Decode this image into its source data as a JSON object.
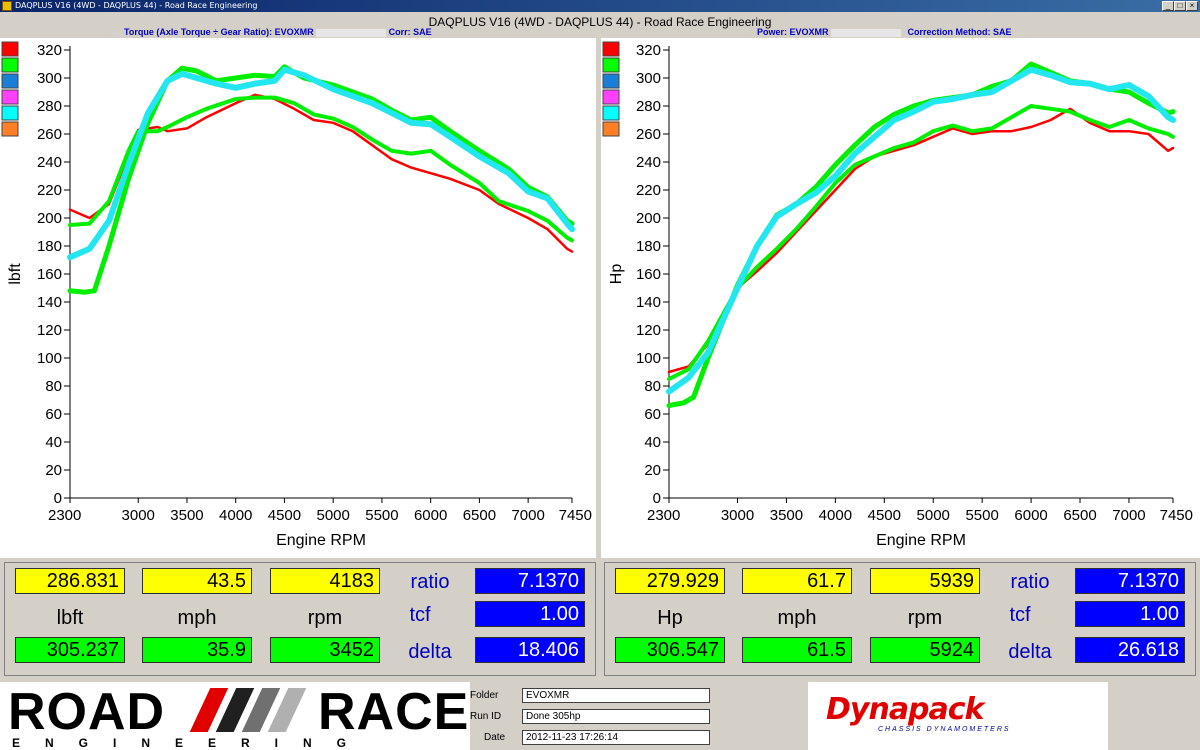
{
  "window": {
    "title": "DAQPLUS V16 (4WD - DAQPLUS 44) - Road Race Engineering",
    "main_title": "DAQPLUS V16 (4WD - DAQPLUS 44) - Road Race Engineering"
  },
  "left_panel": {
    "subtitle_left": "Torque (Axle Torque ÷ Gear Ratio): EVOXMR",
    "subtitle_right": "Corr: SAE",
    "readout": {
      "row1": {
        "value": "286.831",
        "speed": "43.5",
        "rpm": "4183"
      },
      "units": {
        "value": "lbft",
        "speed": "mph",
        "rpm": "rpm"
      },
      "row2": {
        "value": "305.237",
        "speed": "35.9",
        "rpm": "3452"
      },
      "ratio_label": "ratio",
      "ratio": "7.1370",
      "tcf_label": "tcf",
      "tcf": "1.00",
      "delta_label": "delta",
      "delta": "18.406"
    }
  },
  "right_panel": {
    "subtitle_left": "Power: EVOXMR",
    "subtitle_right": "Correction Method: SAE",
    "readout": {
      "row1": {
        "value": "279.929",
        "speed": "61.7",
        "rpm": "5939"
      },
      "units": {
        "value": "Hp",
        "speed": "mph",
        "rpm": "rpm"
      },
      "row2": {
        "value": "306.547",
        "speed": "61.5",
        "rpm": "5924"
      },
      "ratio_label": "ratio",
      "ratio": "7.1370",
      "tcf_label": "tcf",
      "tcf": "1.00",
      "delta_label": "delta",
      "delta": "26.618"
    }
  },
  "legend_colors": [
    "#ff0000",
    "#00ff00",
    "#1a7fd6",
    "#ff40ff",
    "#00ffff",
    "#ff7f27"
  ],
  "chart_data": [
    {
      "type": "line",
      "xlabel": "Engine RPM",
      "ylabel": "lbft",
      "xticks": [
        2300,
        3000,
        3500,
        4000,
        4500,
        5000,
        5500,
        6000,
        6500,
        7000,
        7450
      ],
      "xtick_labels": [
        "2300",
        "3000",
        "3500",
        "4000",
        "4500",
        "5000",
        "5500",
        "6000",
        "6500",
        "7000",
        "7450"
      ],
      "xlim": [
        2300,
        7450
      ],
      "ylim": [
        0,
        320
      ],
      "ytick_labels": [
        "0",
        "20",
        "40",
        "60",
        "80",
        "100",
        "120",
        "140",
        "160",
        "180",
        "200",
        "220",
        "240",
        "260",
        "280",
        "300",
        "320"
      ],
      "series": [
        {
          "color": "#ff0000",
          "width": 2.5,
          "x": [
            2300,
            2500,
            2700,
            2900,
            3000,
            3200,
            3300,
            3500,
            3700,
            4000,
            4200,
            4400,
            4600,
            4800,
            5000,
            5200,
            5400,
            5600,
            5800,
            6000,
            6200,
            6500,
            6700,
            7000,
            7200,
            7400,
            7450
          ],
          "y": [
            206,
            200,
            210,
            245,
            263,
            265,
            262,
            264,
            272,
            282,
            288,
            285,
            278,
            270,
            268,
            262,
            252,
            242,
            236,
            232,
            228,
            220,
            210,
            200,
            192,
            178,
            176
          ]
        },
        {
          "color": "#00ee00",
          "width": 4,
          "x": [
            2300,
            2500,
            2700,
            2900,
            3000,
            3200,
            3300,
            3500,
            3700,
            4000,
            4200,
            4400,
            4600,
            4800,
            5000,
            5200,
            5400,
            5600,
            5800,
            6000,
            6200,
            6500,
            6700,
            7000,
            7200,
            7400,
            7450
          ],
          "y": [
            195,
            196,
            212,
            248,
            262,
            262,
            265,
            272,
            278,
            285,
            286,
            286,
            282,
            274,
            271,
            265,
            256,
            248,
            246,
            248,
            238,
            225,
            212,
            205,
            198,
            186,
            184
          ]
        },
        {
          "color": "#00ee00",
          "width": 5,
          "x": [
            2300,
            2450,
            2550,
            2700,
            2900,
            3100,
            3300,
            3450,
            3600,
            3800,
            4000,
            4200,
            4400,
            4500,
            4700,
            5000,
            5200,
            5400,
            5600,
            5800,
            6000,
            6200,
            6500,
            6800,
            7000,
            7200,
            7400,
            7450
          ],
          "y": [
            148,
            147,
            148,
            180,
            228,
            268,
            298,
            307,
            305,
            298,
            300,
            302,
            301,
            308,
            300,
            295,
            290,
            285,
            277,
            270,
            272,
            262,
            248,
            235,
            222,
            215,
            198,
            196
          ]
        },
        {
          "color": "#22e6f0",
          "width": 6,
          "x": [
            2300,
            2500,
            2700,
            2900,
            3100,
            3300,
            3450,
            3600,
            3800,
            4000,
            4200,
            4400,
            4500,
            4700,
            5000,
            5200,
            5400,
            5600,
            5800,
            6000,
            6200,
            6500,
            6800,
            7000,
            7200,
            7400,
            7450
          ],
          "y": [
            172,
            178,
            198,
            238,
            275,
            298,
            303,
            300,
            296,
            293,
            296,
            298,
            306,
            302,
            292,
            287,
            282,
            275,
            268,
            267,
            258,
            244,
            232,
            219,
            214,
            196,
            192
          ]
        }
      ]
    },
    {
      "type": "line",
      "xlabel": "Engine RPM",
      "ylabel": "Hp",
      "xticks": [
        2300,
        3000,
        3500,
        4000,
        4500,
        5000,
        5500,
        6000,
        6500,
        7000,
        7450
      ],
      "xtick_labels": [
        "2300",
        "3000",
        "3500",
        "4000",
        "4500",
        "5000",
        "5500",
        "6000",
        "6500",
        "7000",
        "7450"
      ],
      "xlim": [
        2300,
        7450
      ],
      "ylim": [
        0,
        320
      ],
      "ytick_labels": [
        "0",
        "20",
        "40",
        "60",
        "80",
        "100",
        "120",
        "140",
        "160",
        "180",
        "200",
        "220",
        "240",
        "260",
        "280",
        "300",
        "320"
      ],
      "series": [
        {
          "color": "#ff0000",
          "width": 2.5,
          "x": [
            2300,
            2500,
            2700,
            3000,
            3200,
            3400,
            3600,
            3800,
            4000,
            4200,
            4400,
            4600,
            4800,
            5000,
            5200,
            5400,
            5600,
            5800,
            6000,
            6200,
            6400,
            6600,
            6800,
            7000,
            7200,
            7400,
            7450
          ],
          "y": [
            90,
            94,
            110,
            150,
            162,
            175,
            190,
            205,
            220,
            235,
            244,
            248,
            252,
            258,
            264,
            260,
            262,
            262,
            265,
            270,
            278,
            268,
            262,
            262,
            260,
            248,
            250
          ]
        },
        {
          "color": "#00ee00",
          "width": 4,
          "x": [
            2300,
            2500,
            2700,
            3000,
            3200,
            3400,
            3600,
            3800,
            4000,
            4200,
            4400,
            4600,
            4800,
            5000,
            5200,
            5400,
            5600,
            5800,
            6000,
            6200,
            6400,
            6600,
            6800,
            7000,
            7200,
            7400,
            7450
          ],
          "y": [
            85,
            92,
            112,
            150,
            165,
            178,
            192,
            208,
            225,
            238,
            244,
            250,
            254,
            262,
            266,
            262,
            264,
            272,
            280,
            278,
            276,
            270,
            265,
            270,
            264,
            260,
            258
          ]
        },
        {
          "color": "#00ee00",
          "width": 5,
          "x": [
            2300,
            2450,
            2550,
            2700,
            3000,
            3200,
            3400,
            3600,
            3800,
            4000,
            4200,
            4400,
            4600,
            4800,
            5000,
            5200,
            5400,
            5600,
            5800,
            6000,
            6200,
            6400,
            6600,
            6800,
            7000,
            7200,
            7400,
            7450
          ],
          "y": [
            66,
            68,
            72,
            100,
            152,
            180,
            202,
            210,
            222,
            238,
            252,
            265,
            274,
            280,
            284,
            286,
            288,
            294,
            298,
            310,
            304,
            298,
            296,
            292,
            290,
            282,
            275,
            276
          ]
        },
        {
          "color": "#22e6f0",
          "width": 6,
          "x": [
            2300,
            2500,
            2700,
            3000,
            3200,
            3400,
            3600,
            3800,
            4000,
            4200,
            4400,
            4600,
            4800,
            5000,
            5200,
            5400,
            5600,
            5800,
            6000,
            6200,
            6400,
            6600,
            6800,
            7000,
            7200,
            7400,
            7450
          ],
          "y": [
            76,
            86,
            104,
            150,
            180,
            201,
            210,
            218,
            230,
            246,
            258,
            270,
            276,
            283,
            285,
            288,
            290,
            298,
            306,
            302,
            297,
            296,
            292,
            295,
            287,
            272,
            270
          ]
        }
      ]
    }
  ],
  "footer": {
    "logo_word1": "ROAD",
    "logo_word2": "RACE",
    "logo_sub": "ENGINEERING",
    "folder_label": "Folder",
    "folder_value": "EVOXMR",
    "runid_label": "Run ID",
    "runid_value": "Done 305hp",
    "date_label": "Date",
    "date_value": "2012-11-23 17:26:14",
    "dynapack_logo": "Dynapack",
    "dynapack_sub": "CHASSIS DYNAMOMETERS"
  }
}
